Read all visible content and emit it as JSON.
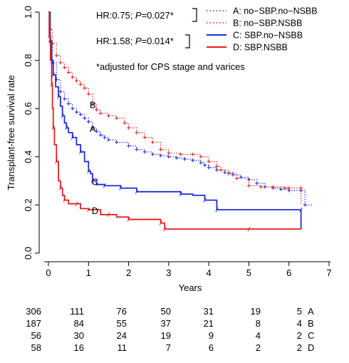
{
  "chart_data": {
    "type": "line",
    "xlabel": "Years",
    "ylabel": "Transplant-free survival rate",
    "xlim": [
      0,
      7
    ],
    "ylim": [
      0,
      1
    ],
    "xticks": [
      "0",
      "1",
      "2",
      "3",
      "4",
      "5",
      "6",
      "7"
    ],
    "yticks": [
      "0.0",
      "0.2",
      "0.4",
      "0.6",
      "0.8",
      "1.0"
    ],
    "grid": false,
    "legend_position": "top-right",
    "colors": {
      "blue": "#1f2fd6",
      "red": "#e02020"
    },
    "series": [
      {
        "name": "A: no−SBP.no−NSBB",
        "curve_label": "A",
        "color": "#1f2fd6",
        "style": "dotted",
        "points": [
          [
            0,
            1.0
          ],
          [
            0.05,
            0.88
          ],
          [
            0.1,
            0.79
          ],
          [
            0.2,
            0.72
          ],
          [
            0.3,
            0.67
          ],
          [
            0.4,
            0.64
          ],
          [
            0.5,
            0.62
          ],
          [
            0.6,
            0.6
          ],
          [
            0.7,
            0.585
          ],
          [
            0.8,
            0.575
          ],
          [
            0.9,
            0.56
          ],
          [
            1.0,
            0.545
          ],
          [
            1.1,
            0.52
          ],
          [
            1.2,
            0.505
          ],
          [
            1.3,
            0.49
          ],
          [
            1.4,
            0.48
          ],
          [
            1.5,
            0.47
          ],
          [
            1.7,
            0.46
          ],
          [
            2.0,
            0.445
          ],
          [
            2.2,
            0.43
          ],
          [
            2.4,
            0.42
          ],
          [
            2.6,
            0.41
          ],
          [
            2.8,
            0.405
          ],
          [
            3.0,
            0.4
          ],
          [
            3.2,
            0.395
          ],
          [
            3.4,
            0.39
          ],
          [
            3.6,
            0.385
          ],
          [
            3.8,
            0.375
          ],
          [
            3.9,
            0.365
          ],
          [
            4.0,
            0.355
          ],
          [
            4.2,
            0.345
          ],
          [
            4.4,
            0.335
          ],
          [
            4.6,
            0.325
          ],
          [
            4.8,
            0.315
          ],
          [
            5.0,
            0.305
          ],
          [
            5.2,
            0.29
          ],
          [
            5.4,
            0.275
          ],
          [
            5.6,
            0.27
          ],
          [
            5.8,
            0.265
          ],
          [
            6.0,
            0.26
          ],
          [
            6.3,
            0.26
          ],
          [
            6.4,
            0.2
          ],
          [
            6.6,
            0.2
          ]
        ]
      },
      {
        "name": "B: no−SBP.NSBB",
        "curve_label": "B",
        "color": "#e02020",
        "style": "dotted",
        "points": [
          [
            0,
            1.0
          ],
          [
            0.05,
            0.93
          ],
          [
            0.1,
            0.87
          ],
          [
            0.2,
            0.82
          ],
          [
            0.3,
            0.79
          ],
          [
            0.4,
            0.77
          ],
          [
            0.5,
            0.75
          ],
          [
            0.6,
            0.73
          ],
          [
            0.7,
            0.715
          ],
          [
            0.8,
            0.7
          ],
          [
            0.9,
            0.685
          ],
          [
            1.0,
            0.66
          ],
          [
            1.1,
            0.62
          ],
          [
            1.2,
            0.595
          ],
          [
            1.3,
            0.58
          ],
          [
            1.5,
            0.57
          ],
          [
            1.7,
            0.56
          ],
          [
            1.9,
            0.54
          ],
          [
            2.0,
            0.52
          ],
          [
            2.2,
            0.5
          ],
          [
            2.4,
            0.48
          ],
          [
            2.6,
            0.46
          ],
          [
            2.8,
            0.43
          ],
          [
            3.0,
            0.415
          ],
          [
            3.3,
            0.41
          ],
          [
            3.6,
            0.41
          ],
          [
            3.8,
            0.4
          ],
          [
            4.0,
            0.38
          ],
          [
            4.2,
            0.36
          ],
          [
            4.3,
            0.345
          ],
          [
            4.5,
            0.33
          ],
          [
            4.7,
            0.31
          ],
          [
            5.0,
            0.28
          ],
          [
            5.3,
            0.275
          ],
          [
            5.6,
            0.275
          ],
          [
            5.9,
            0.27
          ],
          [
            6.0,
            0.27
          ],
          [
            6.3,
            0.27
          ],
          [
            6.3,
            0.2
          ]
        ]
      },
      {
        "name": "C: SBP.no−NSBB",
        "curve_label": "C",
        "color": "#1f2fd6",
        "style": "solid",
        "points": [
          [
            0,
            1.0
          ],
          [
            0.04,
            0.88
          ],
          [
            0.08,
            0.8
          ],
          [
            0.12,
            0.74
          ],
          [
            0.18,
            0.69
          ],
          [
            0.25,
            0.65
          ],
          [
            0.3,
            0.61
          ],
          [
            0.35,
            0.57
          ],
          [
            0.4,
            0.54
          ],
          [
            0.45,
            0.52
          ],
          [
            0.5,
            0.5
          ],
          [
            0.6,
            0.48
          ],
          [
            0.7,
            0.45
          ],
          [
            0.8,
            0.42
          ],
          [
            0.9,
            0.38
          ],
          [
            1.0,
            0.34
          ],
          [
            1.05,
            0.33
          ],
          [
            1.1,
            0.3
          ],
          [
            1.2,
            0.285
          ],
          [
            1.4,
            0.28
          ],
          [
            1.6,
            0.28
          ],
          [
            1.8,
            0.27
          ],
          [
            2.0,
            0.27
          ],
          [
            2.2,
            0.255
          ],
          [
            3.0,
            0.255
          ],
          [
            3.3,
            0.245
          ],
          [
            3.6,
            0.24
          ],
          [
            3.9,
            0.22
          ],
          [
            4.2,
            0.22
          ],
          [
            4.2,
            0.18
          ],
          [
            5.0,
            0.18
          ],
          [
            6.3,
            0.18
          ],
          [
            6.3,
            0.1
          ]
        ]
      },
      {
        "name": "D: SBP.NSBB",
        "curve_label": "D",
        "color": "#e02020",
        "style": "solid",
        "points": [
          [
            0,
            1.0
          ],
          [
            0.02,
            0.9
          ],
          [
            0.05,
            0.8
          ],
          [
            0.08,
            0.7
          ],
          [
            0.1,
            0.6
          ],
          [
            0.12,
            0.52
          ],
          [
            0.15,
            0.45
          ],
          [
            0.2,
            0.38
          ],
          [
            0.25,
            0.3
          ],
          [
            0.3,
            0.27
          ],
          [
            0.35,
            0.24
          ],
          [
            0.4,
            0.22
          ],
          [
            0.5,
            0.205
          ],
          [
            0.7,
            0.205
          ],
          [
            0.8,
            0.185
          ],
          [
            1.0,
            0.18
          ],
          [
            1.3,
            0.16
          ],
          [
            1.5,
            0.16
          ],
          [
            1.7,
            0.15
          ],
          [
            2.0,
            0.14
          ],
          [
            2.5,
            0.14
          ],
          [
            2.8,
            0.125
          ],
          [
            2.9,
            0.125
          ],
          [
            2.9,
            0.1
          ],
          [
            4.0,
            0.1
          ],
          [
            5.0,
            0.1
          ],
          [
            6.3,
            0.1
          ]
        ]
      }
    ],
    "annotations": {
      "hr1_prefix": "HR:0.75; ",
      "hr1_p": "P",
      "hr1_suffix": "=0.027*",
      "hr2_prefix": "HR:1.58; ",
      "hr2_p": "P",
      "hr2_suffix": "=0.014*",
      "footnote": "*adjusted for CPS stage and varices"
    },
    "risk_table": {
      "times": [
        0,
        1,
        2,
        3,
        4,
        5,
        6
      ],
      "rows": [
        {
          "label": "A",
          "values": [
            "306",
            "111",
            "76",
            "50",
            "31",
            "19",
            "5"
          ]
        },
        {
          "label": "B",
          "values": [
            "187",
            "84",
            "55",
            "37",
            "21",
            "8",
            "4"
          ]
        },
        {
          "label": "C",
          "values": [
            "56",
            "30",
            "24",
            "19",
            "9",
            "4",
            "2"
          ]
        },
        {
          "label": "D",
          "values": [
            "58",
            "16",
            "11",
            "7",
            "6",
            "2",
            "2"
          ]
        }
      ]
    }
  }
}
